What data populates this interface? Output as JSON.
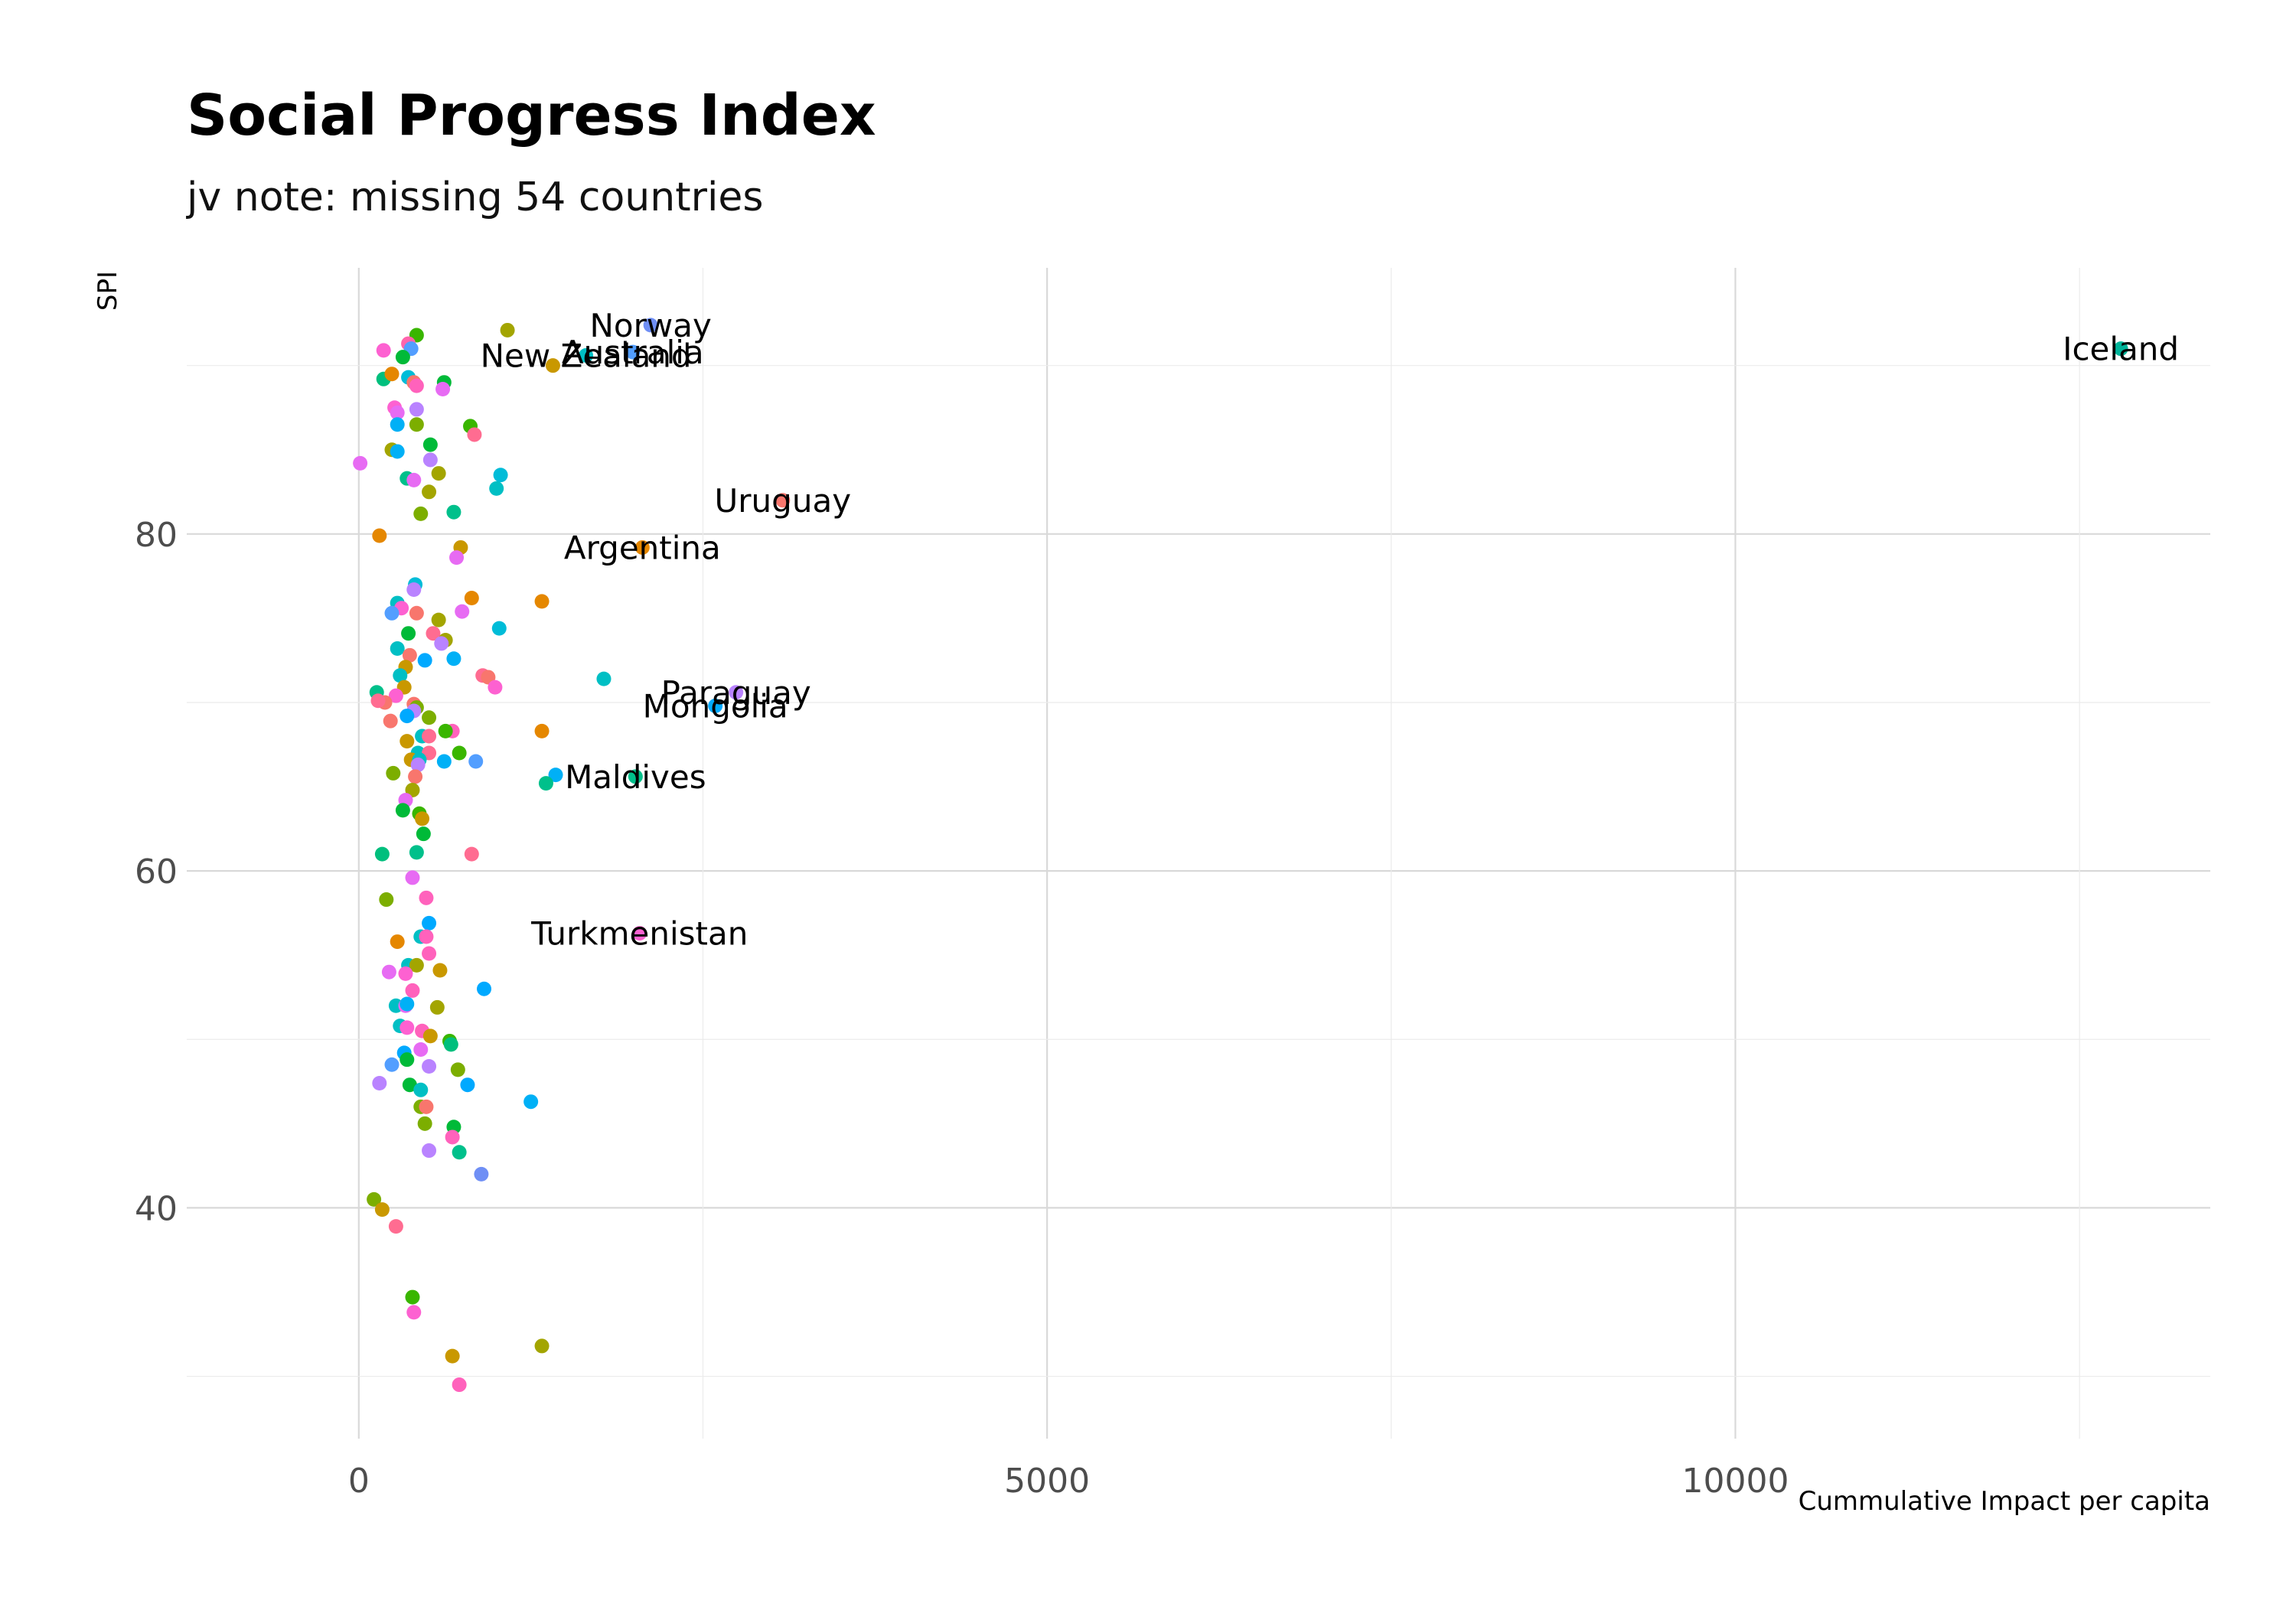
{
  "chart_data": {
    "type": "scatter",
    "title": "Social Progress Index",
    "subtitle": "jv note: missing 54 countries",
    "xlabel": "Cummulative Impact per capita",
    "ylabel": "SPI",
    "xlim": [
      -1250,
      13450
    ],
    "ylim": [
      26.3,
      95.8
    ],
    "xticks": [
      0,
      5000,
      10000
    ],
    "xtick_labels": [
      "0",
      "5000",
      "10000"
    ],
    "yticks": [
      40,
      60,
      80
    ],
    "ytick_labels": [
      "40",
      "60",
      "80"
    ],
    "grid": true,
    "legend": "none",
    "labeled_points": [
      {
        "label": "Norway",
        "x": 2120,
        "y": 92.4,
        "color": "#6F8FF5"
      },
      {
        "label": "New Zealand",
        "x": 1650,
        "y": 90.6,
        "color": "#00BFC4"
      },
      {
        "label": "Australia",
        "x": 1990,
        "y": 90.8,
        "color": "#529EFF"
      },
      {
        "label": "Iceland",
        "x": 12800,
        "y": 91.0,
        "color": "#00B49A"
      },
      {
        "label": "Uruguay",
        "x": 3080,
        "y": 82.0,
        "color": "#F8766D"
      },
      {
        "label": "Argentina",
        "x": 2060,
        "y": 79.2,
        "color": "#E58700"
      },
      {
        "label": "Paraguay",
        "x": 2740,
        "y": 70.6,
        "color": "#B983FF"
      },
      {
        "label": "Mongolia",
        "x": 2590,
        "y": 69.8,
        "color": "#00A9FF"
      },
      {
        "label": "Maldives",
        "x": 2010,
        "y": 65.6,
        "color": "#00C08B"
      },
      {
        "label": "Turkmenistan",
        "x": 2040,
        "y": 56.3,
        "color": "#FD61D1"
      }
    ],
    "points": [
      {
        "x": 420,
        "y": 91.8,
        "color": "#39B600"
      },
      {
        "x": 1080,
        "y": 92.1,
        "color": "#A3A500"
      },
      {
        "x": 180,
        "y": 90.9,
        "color": "#FD61D1"
      },
      {
        "x": 360,
        "y": 91.3,
        "color": "#FF65AC"
      },
      {
        "x": 380,
        "y": 91.0,
        "color": "#529EFF"
      },
      {
        "x": 320,
        "y": 90.5,
        "color": "#00BA38"
      },
      {
        "x": 1410,
        "y": 90.0,
        "color": "#C99800"
      },
      {
        "x": 180,
        "y": 89.2,
        "color": "#00BF7D"
      },
      {
        "x": 240,
        "y": 89.5,
        "color": "#E58700"
      },
      {
        "x": 360,
        "y": 89.3,
        "color": "#00BCD8"
      },
      {
        "x": 400,
        "y": 89.0,
        "color": "#F8766D"
      },
      {
        "x": 420,
        "y": 88.8,
        "color": "#FF62BC"
      },
      {
        "x": 620,
        "y": 89.0,
        "color": "#00BA38"
      },
      {
        "x": 610,
        "y": 88.6,
        "color": "#E76BF3"
      },
      {
        "x": 260,
        "y": 87.5,
        "color": "#FD61D1"
      },
      {
        "x": 420,
        "y": 87.4,
        "color": "#B983FF"
      },
      {
        "x": 280,
        "y": 87.2,
        "color": "#E76BF3"
      },
      {
        "x": 280,
        "y": 86.5,
        "color": "#00B0F6"
      },
      {
        "x": 420,
        "y": 86.5,
        "color": "#7CAE00"
      },
      {
        "x": 810,
        "y": 86.4,
        "color": "#39B600"
      },
      {
        "x": 840,
        "y": 85.9,
        "color": "#FF6C91"
      },
      {
        "x": 520,
        "y": 85.3,
        "color": "#00BA38"
      },
      {
        "x": 240,
        "y": 85.0,
        "color": "#A3A500"
      },
      {
        "x": 280,
        "y": 84.9,
        "color": "#00B0F6"
      },
      {
        "x": 520,
        "y": 84.4,
        "color": "#B983FF"
      },
      {
        "x": 10,
        "y": 84.2,
        "color": "#E76BF3"
      },
      {
        "x": 1030,
        "y": 83.5,
        "color": "#00BCD8"
      },
      {
        "x": 580,
        "y": 83.6,
        "color": "#A3A500"
      },
      {
        "x": 350,
        "y": 83.3,
        "color": "#00C08B"
      },
      {
        "x": 400,
        "y": 83.2,
        "color": "#E76BF3"
      },
      {
        "x": 1000,
        "y": 82.7,
        "color": "#00BFC4"
      },
      {
        "x": 510,
        "y": 82.5,
        "color": "#A3A500"
      },
      {
        "x": 450,
        "y": 81.2,
        "color": "#7CAE00"
      },
      {
        "x": 690,
        "y": 81.3,
        "color": "#00C08B"
      },
      {
        "x": 150,
        "y": 79.9,
        "color": "#E58700"
      },
      {
        "x": 740,
        "y": 79.2,
        "color": "#C99800"
      },
      {
        "x": 710,
        "y": 78.6,
        "color": "#E76BF3"
      },
      {
        "x": 410,
        "y": 77.0,
        "color": "#00BCD8"
      },
      {
        "x": 400,
        "y": 76.7,
        "color": "#B983FF"
      },
      {
        "x": 820,
        "y": 76.2,
        "color": "#E58700"
      },
      {
        "x": 1330,
        "y": 76.0,
        "color": "#E58700"
      },
      {
        "x": 280,
        "y": 75.9,
        "color": "#00BFC4"
      },
      {
        "x": 310,
        "y": 75.6,
        "color": "#FD61D1"
      },
      {
        "x": 240,
        "y": 75.3,
        "color": "#529EFF"
      },
      {
        "x": 420,
        "y": 75.3,
        "color": "#F8766D"
      },
      {
        "x": 750,
        "y": 75.4,
        "color": "#E76BF3"
      },
      {
        "x": 580,
        "y": 74.9,
        "color": "#A3A500"
      },
      {
        "x": 1020,
        "y": 74.4,
        "color": "#00BCD8"
      },
      {
        "x": 360,
        "y": 74.1,
        "color": "#00BA38"
      },
      {
        "x": 540,
        "y": 74.1,
        "color": "#FF6C91"
      },
      {
        "x": 630,
        "y": 73.7,
        "color": "#A3A500"
      },
      {
        "x": 600,
        "y": 73.5,
        "color": "#B983FF"
      },
      {
        "x": 280,
        "y": 73.2,
        "color": "#00BFC4"
      },
      {
        "x": 370,
        "y": 72.8,
        "color": "#F8766D"
      },
      {
        "x": 480,
        "y": 72.5,
        "color": "#00A9FF"
      },
      {
        "x": 690,
        "y": 72.6,
        "color": "#00B0F6"
      },
      {
        "x": 340,
        "y": 72.1,
        "color": "#C99800"
      },
      {
        "x": 300,
        "y": 71.6,
        "color": "#00BFC4"
      },
      {
        "x": 900,
        "y": 71.6,
        "color": "#FF6C91"
      },
      {
        "x": 940,
        "y": 71.5,
        "color": "#F8766D"
      },
      {
        "x": 1780,
        "y": 71.4,
        "color": "#00BFC4"
      },
      {
        "x": 330,
        "y": 70.9,
        "color": "#C99800"
      },
      {
        "x": 990,
        "y": 70.9,
        "color": "#FD61D1"
      },
      {
        "x": 130,
        "y": 70.6,
        "color": "#00C08B"
      },
      {
        "x": 270,
        "y": 70.4,
        "color": "#FD61D1"
      },
      {
        "x": 190,
        "y": 70.0,
        "color": "#F8766D"
      },
      {
        "x": 140,
        "y": 70.1,
        "color": "#FF6C91"
      },
      {
        "x": 400,
        "y": 69.9,
        "color": "#F8766D"
      },
      {
        "x": 420,
        "y": 69.7,
        "color": "#7CAE00"
      },
      {
        "x": 400,
        "y": 69.5,
        "color": "#B983FF"
      },
      {
        "x": 350,
        "y": 69.2,
        "color": "#00A9FF"
      },
      {
        "x": 510,
        "y": 69.1,
        "color": "#7CAE00"
      },
      {
        "x": 230,
        "y": 68.9,
        "color": "#F8766D"
      },
      {
        "x": 680,
        "y": 68.3,
        "color": "#FF62BC"
      },
      {
        "x": 630,
        "y": 68.3,
        "color": "#39B600"
      },
      {
        "x": 1330,
        "y": 68.3,
        "color": "#E58700"
      },
      {
        "x": 460,
        "y": 68.0,
        "color": "#00BFC4"
      },
      {
        "x": 510,
        "y": 68.0,
        "color": "#FF6C91"
      },
      {
        "x": 350,
        "y": 67.7,
        "color": "#C99800"
      },
      {
        "x": 430,
        "y": 67.0,
        "color": "#00BFC4"
      },
      {
        "x": 510,
        "y": 67.0,
        "color": "#FF6C91"
      },
      {
        "x": 730,
        "y": 67.0,
        "color": "#39B600"
      },
      {
        "x": 380,
        "y": 66.6,
        "color": "#C99800"
      },
      {
        "x": 440,
        "y": 66.6,
        "color": "#00BFC4"
      },
      {
        "x": 620,
        "y": 66.5,
        "color": "#00B0F6"
      },
      {
        "x": 850,
        "y": 66.5,
        "color": "#529EFF"
      },
      {
        "x": 430,
        "y": 66.3,
        "color": "#B983FF"
      },
      {
        "x": 250,
        "y": 65.8,
        "color": "#7CAE00"
      },
      {
        "x": 410,
        "y": 65.6,
        "color": "#F8766D"
      },
      {
        "x": 1430,
        "y": 65.7,
        "color": "#00B0F6"
      },
      {
        "x": 1360,
        "y": 65.2,
        "color": "#00C08B"
      },
      {
        "x": 390,
        "y": 64.8,
        "color": "#A3A500"
      },
      {
        "x": 340,
        "y": 64.2,
        "color": "#E76BF3"
      },
      {
        "x": 320,
        "y": 63.6,
        "color": "#00BA38"
      },
      {
        "x": 440,
        "y": 63.4,
        "color": "#39B600"
      },
      {
        "x": 460,
        "y": 63.1,
        "color": "#C99800"
      },
      {
        "x": 470,
        "y": 62.2,
        "color": "#00BA38"
      },
      {
        "x": 170,
        "y": 61.0,
        "color": "#00BF7D"
      },
      {
        "x": 420,
        "y": 61.1,
        "color": "#00C08B"
      },
      {
        "x": 820,
        "y": 61.0,
        "color": "#FF6C91"
      },
      {
        "x": 390,
        "y": 59.6,
        "color": "#E76BF3"
      },
      {
        "x": 200,
        "y": 58.3,
        "color": "#7CAE00"
      },
      {
        "x": 490,
        "y": 58.4,
        "color": "#FF62BC"
      },
      {
        "x": 510,
        "y": 56.9,
        "color": "#00A9FF"
      },
      {
        "x": 450,
        "y": 56.1,
        "color": "#00BFC4"
      },
      {
        "x": 490,
        "y": 56.1,
        "color": "#FF62BC"
      },
      {
        "x": 280,
        "y": 55.8,
        "color": "#E58700"
      },
      {
        "x": 510,
        "y": 55.1,
        "color": "#FF62BC"
      },
      {
        "x": 360,
        "y": 54.4,
        "color": "#00BFC4"
      },
      {
        "x": 420,
        "y": 54.4,
        "color": "#A3A500"
      },
      {
        "x": 590,
        "y": 54.1,
        "color": "#C99800"
      },
      {
        "x": 220,
        "y": 54.0,
        "color": "#E76BF3"
      },
      {
        "x": 340,
        "y": 53.9,
        "color": "#FD61D1"
      },
      {
        "x": 910,
        "y": 53.0,
        "color": "#00A9FF"
      },
      {
        "x": 390,
        "y": 52.9,
        "color": "#FF62BC"
      },
      {
        "x": 270,
        "y": 52.0,
        "color": "#00BFC4"
      },
      {
        "x": 340,
        "y": 52.0,
        "color": "#E76BF3"
      },
      {
        "x": 350,
        "y": 52.1,
        "color": "#00B0F6"
      },
      {
        "x": 570,
        "y": 51.9,
        "color": "#A3A500"
      },
      {
        "x": 300,
        "y": 50.8,
        "color": "#00BFC4"
      },
      {
        "x": 350,
        "y": 50.7,
        "color": "#FD61D1"
      },
      {
        "x": 460,
        "y": 50.5,
        "color": "#FF62BC"
      },
      {
        "x": 520,
        "y": 50.2,
        "color": "#C99800"
      },
      {
        "x": 660,
        "y": 49.9,
        "color": "#39B600"
      },
      {
        "x": 670,
        "y": 49.7,
        "color": "#00BF7D"
      },
      {
        "x": 450,
        "y": 49.4,
        "color": "#E76BF3"
      },
      {
        "x": 330,
        "y": 49.2,
        "color": "#00A9FF"
      },
      {
        "x": 350,
        "y": 48.8,
        "color": "#00BA38"
      },
      {
        "x": 240,
        "y": 48.5,
        "color": "#529EFF"
      },
      {
        "x": 510,
        "y": 48.4,
        "color": "#B983FF"
      },
      {
        "x": 720,
        "y": 48.2,
        "color": "#7CAE00"
      },
      {
        "x": 150,
        "y": 47.4,
        "color": "#B983FF"
      },
      {
        "x": 370,
        "y": 47.3,
        "color": "#00BA38"
      },
      {
        "x": 450,
        "y": 47.0,
        "color": "#00BFC4"
      },
      {
        "x": 790,
        "y": 47.3,
        "color": "#00A9FF"
      },
      {
        "x": 1250,
        "y": 46.3,
        "color": "#00B0F6"
      },
      {
        "x": 450,
        "y": 46.0,
        "color": "#7CAE00"
      },
      {
        "x": 490,
        "y": 46.0,
        "color": "#F8766D"
      },
      {
        "x": 480,
        "y": 45.0,
        "color": "#7CAE00"
      },
      {
        "x": 690,
        "y": 44.8,
        "color": "#00BA38"
      },
      {
        "x": 680,
        "y": 44.2,
        "color": "#FF62BC"
      },
      {
        "x": 510,
        "y": 43.4,
        "color": "#B983FF"
      },
      {
        "x": 730,
        "y": 43.3,
        "color": "#00C08B"
      },
      {
        "x": 890,
        "y": 42.0,
        "color": "#6F8FF5"
      },
      {
        "x": 110,
        "y": 40.5,
        "color": "#7CAE00"
      },
      {
        "x": 170,
        "y": 39.9,
        "color": "#C99800"
      },
      {
        "x": 270,
        "y": 38.9,
        "color": "#FF6C91"
      },
      {
        "x": 390,
        "y": 34.7,
        "color": "#39B600"
      },
      {
        "x": 400,
        "y": 33.8,
        "color": "#FD61D1"
      },
      {
        "x": 680,
        "y": 31.2,
        "color": "#C99800"
      },
      {
        "x": 1330,
        "y": 31.8,
        "color": "#A3A500"
      },
      {
        "x": 730,
        "y": 29.5,
        "color": "#FF62BC"
      }
    ]
  }
}
